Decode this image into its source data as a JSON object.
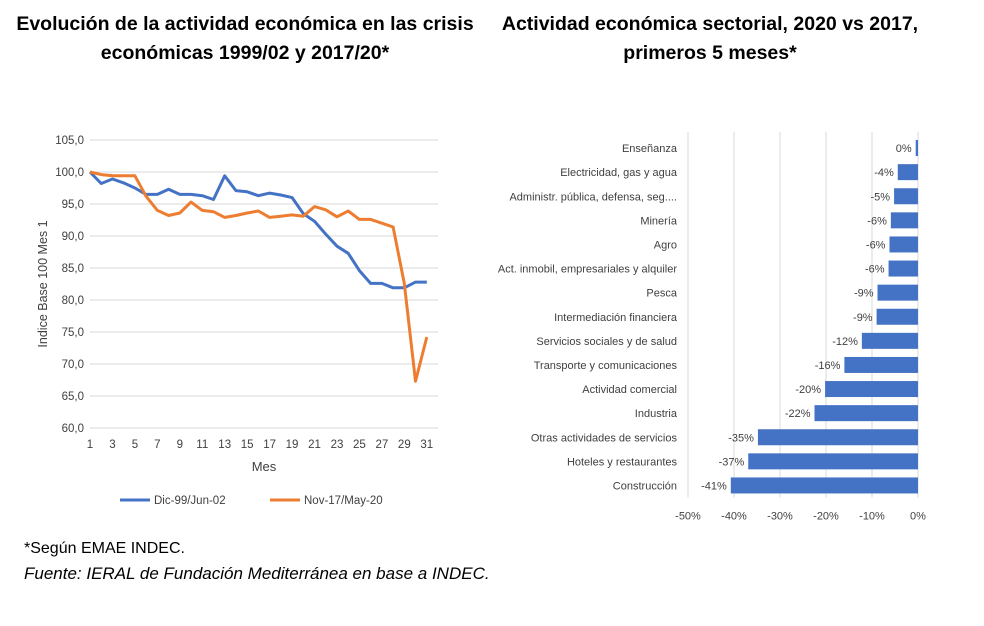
{
  "left_title": "Evolución de la actividad económica en las crisis económicas 1999/02 y 2017/20*",
  "right_title": "Actividad económica sectorial, 2020 vs 2017, primeros 5 meses*",
  "footnote": "*Según EMAE INDEC.",
  "source": "Fuente: IERAL de Fundación Mediterránea en base a INDEC.",
  "colors": {
    "blue": "#4472C4",
    "orange": "#ED7D31",
    "grid": "#D9D9D9",
    "axis_text": "#404040"
  },
  "chart_data": [
    {
      "type": "line",
      "xlabel": "Mes",
      "ylabel": "Indice Base 100 Mes 1",
      "ylim": [
        60,
        105
      ],
      "xlim": [
        1,
        32
      ],
      "y_ticks": [
        "60,0",
        "65,0",
        "70,0",
        "75,0",
        "80,0",
        "85,0",
        "90,0",
        "95,0",
        "100,0",
        "105,0"
      ],
      "x_ticks": [
        "1",
        "3",
        "5",
        "7",
        "9",
        "11",
        "13",
        "15",
        "17",
        "19",
        "21",
        "23",
        "25",
        "27",
        "29",
        "31"
      ],
      "grid": "horizontal",
      "legend_position": "bottom",
      "x": [
        1,
        2,
        3,
        4,
        5,
        6,
        7,
        8,
        9,
        10,
        11,
        12,
        13,
        14,
        15,
        16,
        17,
        18,
        19,
        20,
        21,
        22,
        23,
        24,
        25,
        26,
        27,
        28,
        29,
        30,
        31,
        32
      ],
      "series": [
        {
          "name": "Dic-99/Jun-02",
          "values": [
            100.0,
            98.2,
            98.9,
            98.3,
            97.5,
            96.5,
            96.5,
            97.3,
            96.5,
            96.5,
            96.3,
            95.7,
            99.4,
            97.1,
            96.9,
            96.3,
            96.7,
            96.4,
            96.0,
            93.5,
            92.3,
            90.3,
            88.4,
            87.3,
            84.6,
            82.6,
            82.6,
            81.9,
            81.9,
            82.8,
            82.8,
            null
          ]
        },
        {
          "name": "Nov-17/May-20",
          "values": [
            100.0,
            99.6,
            99.4,
            99.4,
            99.4,
            96.2,
            94.0,
            93.2,
            93.6,
            95.3,
            94.0,
            93.8,
            92.9,
            93.2,
            93.6,
            93.9,
            92.9,
            93.1,
            93.3,
            93.1,
            94.6,
            94.1,
            93.0,
            93.9,
            92.6,
            92.6,
            92.0,
            91.4,
            82.6,
            67.3,
            74.2,
            null
          ]
        }
      ]
    },
    {
      "type": "bar",
      "orientation": "horizontal",
      "categories": [
        "Enseñanza",
        "Electricidad, gas y agua",
        "Administr. pública, defensa, seg....",
        "Minería",
        "Agro",
        "Act. inmobil, empresariales y alquiler",
        "Pesca",
        "Intermediación financiera",
        "Servicios sociales y de salud",
        "Transporte y comunicaciones",
        "Actividad comercial",
        "Industria",
        "Otras actividades de servicios",
        "Hoteles y restaurantes",
        "Construcción"
      ],
      "values": [
        -0.5,
        -4.4,
        -5.2,
        -5.9,
        -6.2,
        -6.4,
        -8.8,
        -9.0,
        -12.2,
        -16.0,
        -20.2,
        -22.5,
        -34.8,
        -36.9,
        -40.7
      ],
      "data_labels": [
        "0%",
        "-4%",
        "-5%",
        "-6%",
        "-6%",
        "-6%",
        "-9%",
        "-9%",
        "-12%",
        "-16%",
        "-20%",
        "-22%",
        "-35%",
        "-37%",
        "-41%"
      ],
      "xlim": [
        -50,
        0
      ],
      "x_ticks": [
        "-50%",
        "-40%",
        "-30%",
        "-20%",
        "-10%",
        "0%"
      ],
      "grid": "vertical"
    }
  ]
}
